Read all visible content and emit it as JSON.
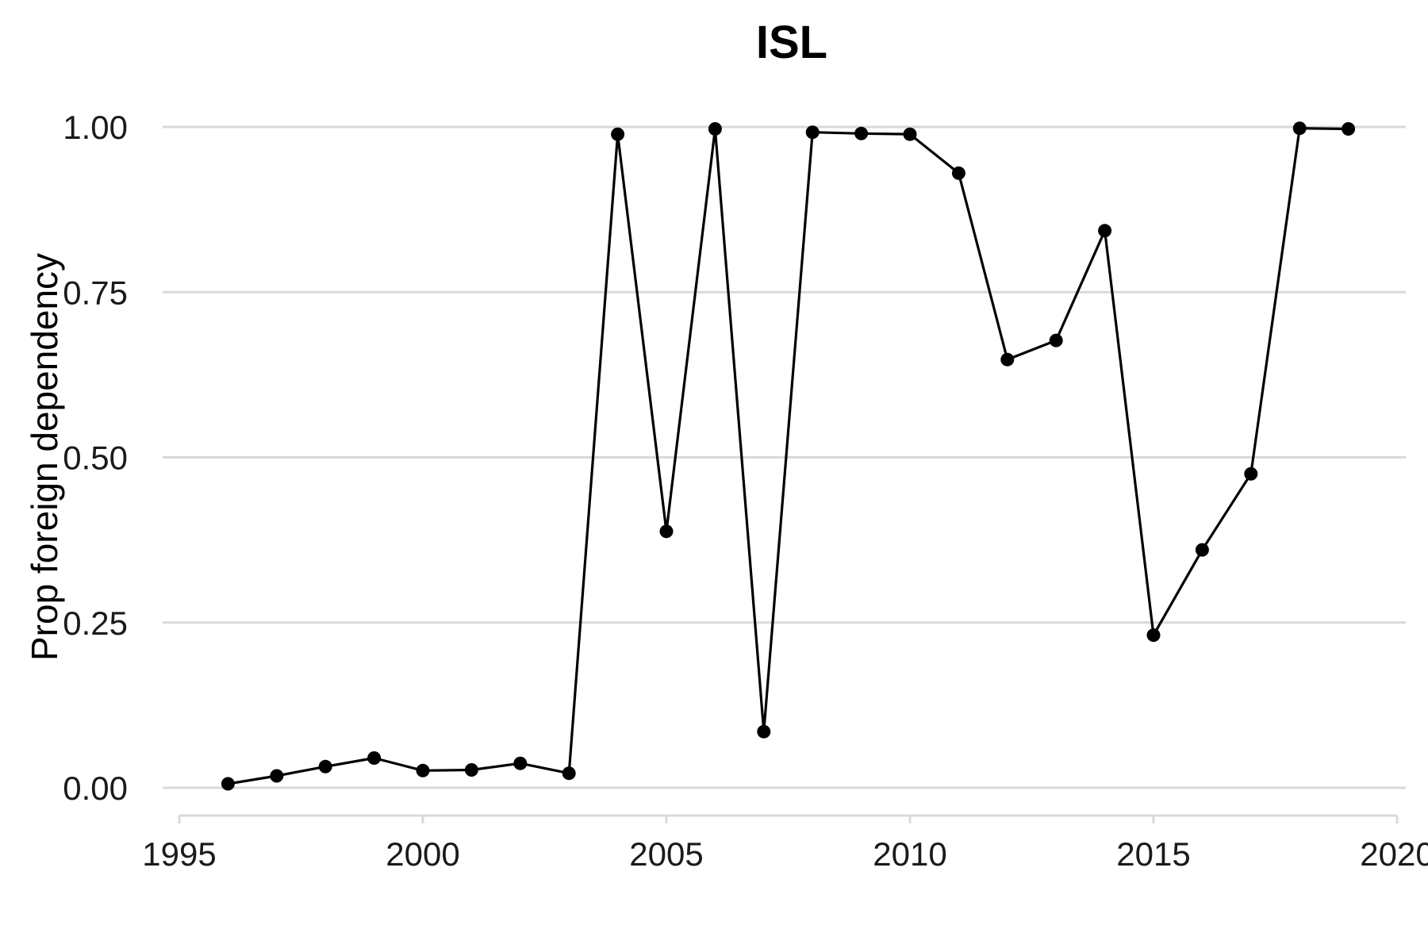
{
  "chart_data": {
    "type": "line",
    "title": "ISL",
    "xlabel": "",
    "ylabel": "Prop foreign dependency",
    "xlim": [
      1995,
      2020
    ],
    "ylim": [
      0,
      1
    ],
    "x_ticks": [
      1995,
      2000,
      2005,
      2010,
      2015,
      2020
    ],
    "x_tick_labels": [
      "1995",
      "2000",
      "2005",
      "2010",
      "2015",
      "2020"
    ],
    "y_ticks": [
      0,
      0.25,
      0.5,
      0.75,
      1
    ],
    "y_tick_labels": [
      "0.00",
      "0.25",
      "0.50",
      "0.75",
      "1.00"
    ],
    "grid": "horizontal",
    "legend": "none",
    "series": [
      {
        "color": "#000000",
        "x": [
          1996,
          1997,
          1998,
          1999,
          2000,
          2001,
          2002,
          2003,
          2004,
          2005,
          2006,
          2007,
          2008,
          2009,
          2010,
          2011,
          2012,
          2013,
          2014,
          2015,
          2016,
          2017,
          2018,
          2019
        ],
        "y": [
          0.006,
          0.018,
          0.032,
          0.045,
          0.026,
          0.027,
          0.037,
          0.022,
          0.989,
          0.388,
          0.997,
          0.085,
          0.992,
          0.99,
          0.989,
          0.93,
          0.648,
          0.677,
          0.843,
          0.231,
          0.36,
          0.475,
          0.998,
          0.997
        ]
      }
    ]
  }
}
